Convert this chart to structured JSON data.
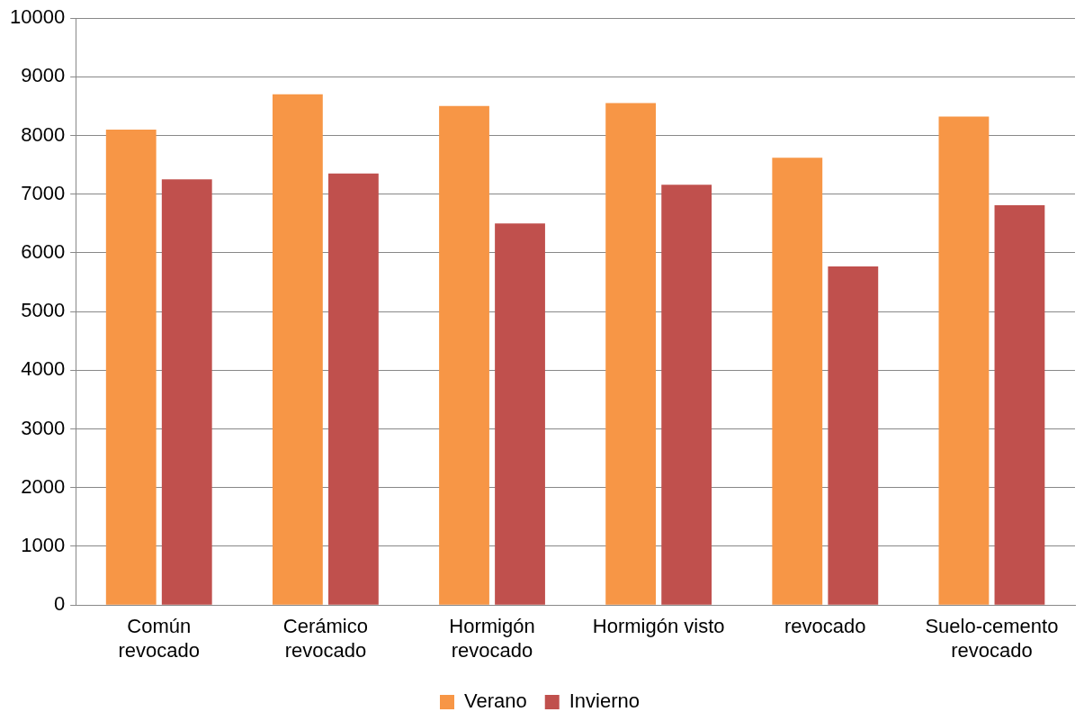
{
  "chart_data": {
    "type": "bar",
    "categories": [
      "Común\nrevocado",
      "Cerámico\nrevocado",
      "Hormigón\nrevocado",
      "Hormigón visto",
      "revocado",
      "Suelo-cemento\nrevocado"
    ],
    "series": [
      {
        "name": "Verano",
        "color": "#f79646",
        "values": [
          8100,
          8700,
          8500,
          8550,
          7620,
          8320
        ]
      },
      {
        "name": "Invierno",
        "color": "#c0504d",
        "values": [
          7250,
          7350,
          6500,
          7160,
          5770,
          6810
        ]
      }
    ],
    "ylim": [
      0,
      10000
    ],
    "yticks": [
      0,
      1000,
      2000,
      3000,
      4000,
      5000,
      6000,
      7000,
      8000,
      9000,
      10000
    ],
    "grid": "y",
    "legend": "bottom"
  }
}
